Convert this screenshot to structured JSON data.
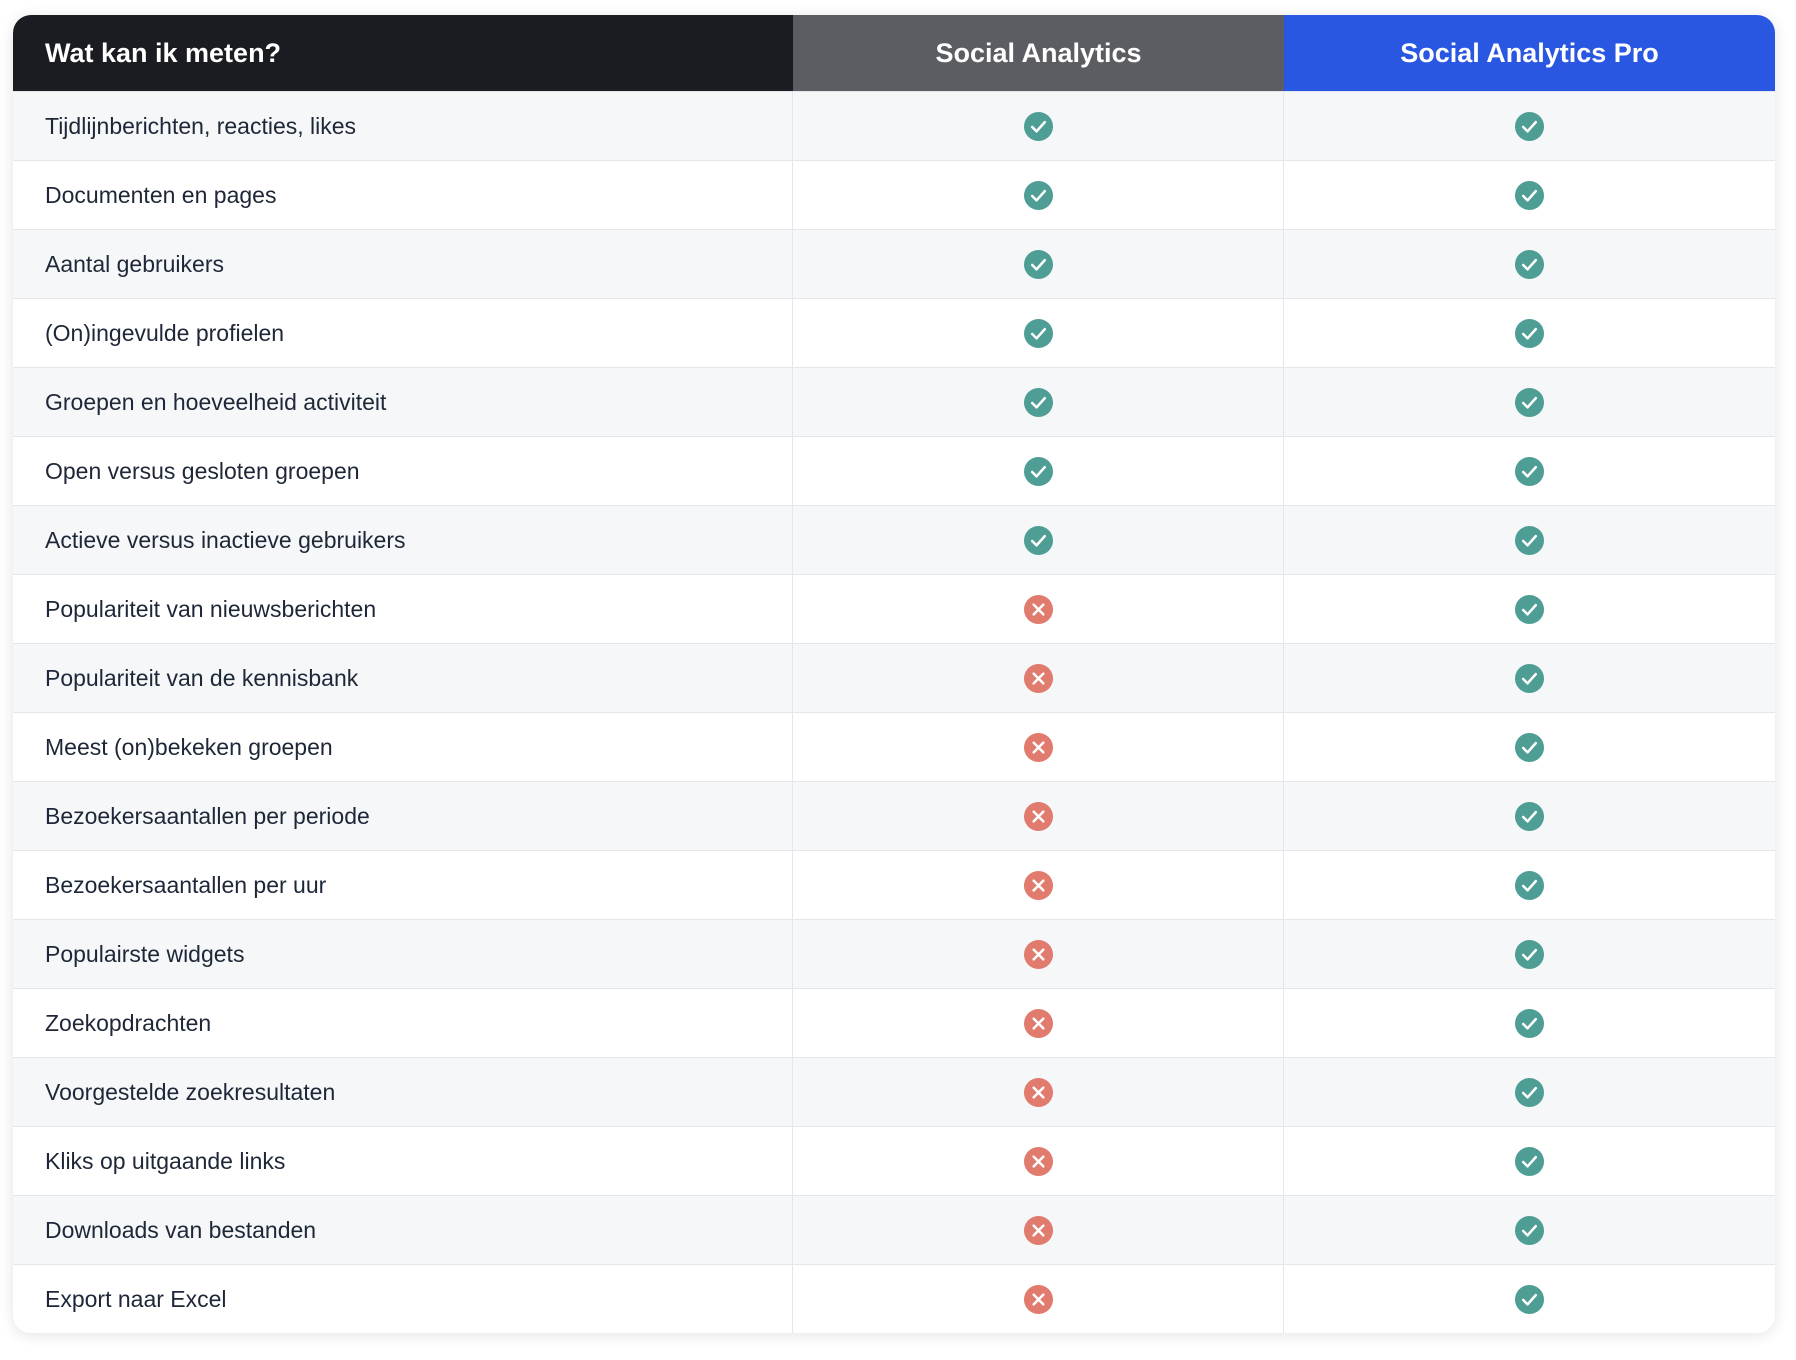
{
  "colors": {
    "header_feature_bg": "#1b1c21",
    "header_basic_bg": "#5c5d63",
    "header_pro_bg": "#2a57e2",
    "check": "#4f9e95",
    "cross": "#e07b6e",
    "row_alt": "#f5f7f9"
  },
  "table": {
    "headers": {
      "feature": "Wat kan ik meten?",
      "basic": "Social Analytics",
      "pro": "Social Analytics Pro"
    },
    "rows": [
      {
        "label": "Tijdlijnberichten, reacties, likes",
        "basic": "check-icon",
        "pro": "check-icon"
      },
      {
        "label": "Documenten en pages",
        "basic": "check-icon",
        "pro": "check-icon"
      },
      {
        "label": "Aantal gebruikers",
        "basic": "check-icon",
        "pro": "check-icon"
      },
      {
        "label": "(On)ingevulde profielen",
        "basic": "check-icon",
        "pro": "check-icon"
      },
      {
        "label": "Groepen en hoeveelheid activiteit",
        "basic": "check-icon",
        "pro": "check-icon"
      },
      {
        "label": "Open versus gesloten groepen",
        "basic": "check-icon",
        "pro": "check-icon"
      },
      {
        "label": "Actieve versus inactieve gebruikers",
        "basic": "check-icon",
        "pro": "check-icon"
      },
      {
        "label": "Populariteit van nieuwsberichten",
        "basic": "cross-icon",
        "pro": "check-icon"
      },
      {
        "label": "Populariteit van de kennisbank",
        "basic": "cross-icon",
        "pro": "check-icon"
      },
      {
        "label": "Meest (on)bekeken groepen",
        "basic": "cross-icon",
        "pro": "check-icon"
      },
      {
        "label": "Bezoekersaantallen per periode",
        "basic": "cross-icon",
        "pro": "check-icon"
      },
      {
        "label": "Bezoekersaantallen per uur",
        "basic": "cross-icon",
        "pro": "check-icon"
      },
      {
        "label": "Populairste widgets",
        "basic": "cross-icon",
        "pro": "check-icon"
      },
      {
        "label": "Zoekopdrachten",
        "basic": "cross-icon",
        "pro": "check-icon"
      },
      {
        "label": "Voorgestelde zoekresultaten",
        "basic": "cross-icon",
        "pro": "check-icon"
      },
      {
        "label": "Kliks op uitgaande links",
        "basic": "cross-icon",
        "pro": "check-icon"
      },
      {
        "label": "Downloads van bestanden",
        "basic": "cross-icon",
        "pro": "check-icon"
      },
      {
        "label": "Export naar Excel",
        "basic": "cross-icon",
        "pro": "check-icon"
      }
    ]
  }
}
